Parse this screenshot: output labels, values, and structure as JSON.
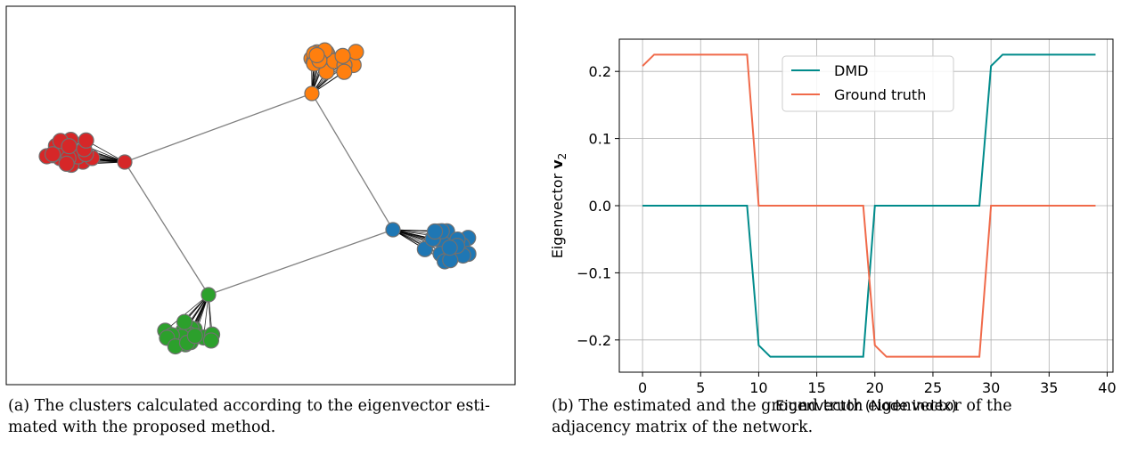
{
  "captions": {
    "a_line1": "(a) The clusters calculated according to the eigenvector esti-",
    "a_line2": "mated with the proposed method.",
    "b_line1": "(b) The estimated and the ground truth eigenvector of the",
    "b_line2": "adjacency matrix of the network."
  },
  "graph": {
    "edge_color": "#808080",
    "clusters": [
      {
        "name": "orange",
        "color": "#ff7f0e"
      },
      {
        "name": "red",
        "color": "#d62728"
      },
      {
        "name": "blue",
        "color": "#1f77b4"
      },
      {
        "name": "green",
        "color": "#2ca02c"
      }
    ]
  },
  "chart_data": {
    "type": "line",
    "xlabel": "Eigenvector (Node index)",
    "ylabel": "Eigenvector v2",
    "xlim": [
      -2,
      40.5
    ],
    "ylim": [
      -0.248,
      0.248
    ],
    "x_ticks": [
      0,
      5,
      10,
      15,
      20,
      25,
      30,
      35,
      40
    ],
    "x_tick_labels": [
      "0",
      "5",
      "10",
      "15",
      "20",
      "25",
      "30",
      "35",
      "40"
    ],
    "y_ticks": [
      -0.2,
      -0.1,
      0.0,
      0.1,
      0.2
    ],
    "y_tick_labels": [
      "−0.2",
      "−0.1",
      "0.0",
      "0.1",
      "0.2"
    ],
    "grid": true,
    "legend_position": "top-center",
    "x": [
      0,
      1,
      2,
      3,
      4,
      5,
      6,
      7,
      8,
      9,
      10,
      11,
      12,
      13,
      14,
      15,
      16,
      17,
      18,
      19,
      20,
      21,
      22,
      23,
      24,
      25,
      26,
      27,
      28,
      29,
      30,
      31,
      32,
      33,
      34,
      35,
      36,
      37,
      38,
      39
    ],
    "series": [
      {
        "name": "DMD",
        "color": "#008b8b",
        "values": [
          0,
          0,
          0,
          0,
          0,
          0,
          0,
          0,
          0,
          0,
          -0.208,
          -0.225,
          -0.225,
          -0.225,
          -0.225,
          -0.225,
          -0.225,
          -0.225,
          -0.225,
          -0.225,
          0,
          0,
          0,
          0,
          0,
          0,
          0,
          0,
          0,
          0,
          0.208,
          0.225,
          0.225,
          0.225,
          0.225,
          0.225,
          0.225,
          0.225,
          0.225,
          0.225
        ]
      },
      {
        "name": "Ground truth",
        "color": "#f06a4a",
        "values": [
          0.208,
          0.225,
          0.225,
          0.225,
          0.225,
          0.225,
          0.225,
          0.225,
          0.225,
          0.225,
          0,
          0,
          0,
          0,
          0,
          0,
          0,
          0,
          0,
          0,
          -0.208,
          -0.225,
          -0.225,
          -0.225,
          -0.225,
          -0.225,
          -0.225,
          -0.225,
          -0.225,
          -0.225,
          0,
          0,
          0,
          0,
          0,
          0,
          0,
          0,
          0,
          0
        ]
      }
    ]
  }
}
